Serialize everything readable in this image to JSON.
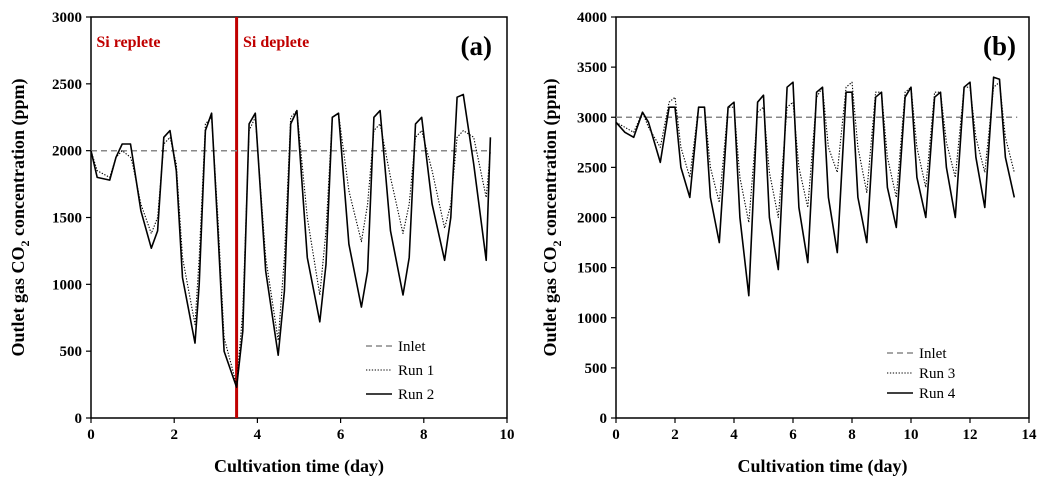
{
  "chart_data": [
    {
      "type": "line",
      "panel_label": "(a)",
      "xlabel": "Cultivation time (day)",
      "ylabel_main": "Outlet gas CO",
      "ylabel_sub": "2",
      "ylabel_tail": "  concentration (ppm)",
      "xlim": [
        0,
        10
      ],
      "ylim": [
        0,
        3000
      ],
      "xticks": [
        0,
        2,
        4,
        6,
        8,
        10
      ],
      "yticks": [
        0,
        500,
        1000,
        1500,
        2000,
        2500,
        3000
      ],
      "divider_x": 3.5,
      "regions": [
        {
          "label": "Si replete",
          "x": 0.9
        },
        {
          "label": "Si deplete",
          "x": 4.45
        }
      ],
      "colors": {
        "divider": "#c00000",
        "region_text": "#c00000",
        "inlet": "#888888",
        "run_a": "#000000",
        "run_b": "#000000"
      },
      "legend_position": "bottom-right",
      "series": [
        {
          "name": "Inlet",
          "style": "dashed",
          "x": [
            0,
            9.6
          ],
          "y": [
            2000,
            2000
          ]
        },
        {
          "name": "Run 1",
          "style": "dotted",
          "x": [
            0,
            0.15,
            0.45,
            0.6,
            0.75,
            0.95,
            1.0,
            1.2,
            1.45,
            1.6,
            1.75,
            1.9,
            2.05,
            2.2,
            2.5,
            2.6,
            2.75,
            2.9,
            3.05,
            3.2,
            3.5,
            3.65,
            3.8,
            3.95,
            4.2,
            4.5,
            4.65,
            4.8,
            4.95,
            5.2,
            5.5,
            5.65,
            5.8,
            5.95,
            6.2,
            6.5,
            6.65,
            6.8,
            6.95,
            7.2,
            7.5,
            7.65,
            7.8,
            7.95,
            8.2,
            8.5,
            8.65,
            8.8,
            8.95,
            9.2,
            9.5,
            9.6
          ],
          "y": [
            2000,
            1850,
            1800,
            1950,
            2000,
            1950,
            1900,
            1600,
            1380,
            1500,
            2050,
            2100,
            1900,
            1200,
            700,
            1200,
            2200,
            2250,
            1500,
            600,
            250,
            800,
            2150,
            2250,
            1200,
            580,
            1200,
            2250,
            2300,
            1500,
            920,
            1400,
            2250,
            2280,
            1700,
            1320,
            1600,
            2150,
            2200,
            1800,
            1380,
            1600,
            2100,
            2150,
            1850,
            1420,
            1600,
            2100,
            2150,
            2100,
            1650,
            2000
          ]
        },
        {
          "name": "Run 2",
          "style": "solid",
          "x": [
            0,
            0.15,
            0.45,
            0.6,
            0.75,
            0.95,
            1.0,
            1.2,
            1.45,
            1.6,
            1.75,
            1.9,
            2.05,
            2.2,
            2.5,
            2.6,
            2.75,
            2.9,
            3.05,
            3.2,
            3.5,
            3.65,
            3.8,
            3.95,
            4.2,
            4.5,
            4.65,
            4.8,
            4.95,
            5.2,
            5.5,
            5.65,
            5.8,
            5.95,
            6.2,
            6.5,
            6.65,
            6.8,
            6.95,
            7.2,
            7.5,
            7.65,
            7.8,
            7.95,
            8.2,
            8.5,
            8.65,
            8.8,
            8.95,
            9.2,
            9.5,
            9.6
          ],
          "y": [
            2000,
            1800,
            1780,
            1950,
            2050,
            2050,
            1950,
            1550,
            1270,
            1400,
            2100,
            2150,
            1850,
            1050,
            560,
            1000,
            2150,
            2280,
            1400,
            500,
            230,
            650,
            2200,
            2280,
            1100,
            470,
            950,
            2200,
            2300,
            1200,
            720,
            1150,
            2250,
            2280,
            1300,
            830,
            1100,
            2250,
            2300,
            1400,
            920,
            1200,
            2200,
            2250,
            1600,
            1180,
            1500,
            2400,
            2420,
            1900,
            1180,
            2100
          ]
        }
      ]
    },
    {
      "type": "line",
      "panel_label": "(b)",
      "xlabel": "Cultivation time (day)",
      "ylabel_main": "Outlet gas CO",
      "ylabel_sub": "2",
      "ylabel_tail": "  concentration (ppm)",
      "xlim": [
        0,
        14
      ],
      "ylim": [
        0,
        4000
      ],
      "xticks": [
        0,
        2,
        4,
        6,
        8,
        10,
        12,
        14
      ],
      "yticks": [
        0,
        500,
        1000,
        1500,
        2000,
        2500,
        3000,
        3500,
        4000
      ],
      "colors": {
        "inlet": "#888888",
        "run_a": "#000000",
        "run_b": "#000000"
      },
      "legend_position": "bottom-right",
      "series": [
        {
          "name": "Inlet",
          "style": "dashed",
          "x": [
            0,
            13.6
          ],
          "y": [
            3000,
            3000
          ]
        },
        {
          "name": "Run 3",
          "style": "dotted",
          "x": [
            0,
            0.3,
            0.6,
            0.9,
            1.1,
            1.5,
            1.8,
            2.0,
            2.2,
            2.5,
            2.8,
            3.0,
            3.2,
            3.5,
            3.8,
            4.0,
            4.2,
            4.5,
            4.8,
            5.0,
            5.2,
            5.5,
            5.8,
            6.0,
            6.2,
            6.5,
            6.8,
            7.0,
            7.2,
            7.5,
            7.8,
            8.0,
            8.2,
            8.5,
            8.8,
            9.0,
            9.2,
            9.5,
            9.8,
            10.0,
            10.2,
            10.5,
            10.8,
            11.0,
            11.2,
            11.5,
            11.8,
            12.0,
            12.2,
            12.5,
            12.8,
            13.0,
            13.2,
            13.5
          ],
          "y": [
            2950,
            2900,
            2850,
            3050,
            2900,
            2700,
            3150,
            3200,
            2700,
            2400,
            3100,
            3100,
            2500,
            2150,
            3100,
            3100,
            2400,
            1950,
            3050,
            3100,
            2450,
            2000,
            3100,
            3150,
            2500,
            2100,
            3200,
            3300,
            2700,
            2450,
            3300,
            3350,
            2700,
            2250,
            3250,
            3250,
            2600,
            2200,
            3250,
            3300,
            2700,
            2300,
            3250,
            3250,
            2750,
            2400,
            3300,
            3300,
            2800,
            2450,
            3300,
            3350,
            2800,
            2450
          ]
        },
        {
          "name": "Run 4",
          "style": "solid",
          "x": [
            0,
            0.3,
            0.6,
            0.9,
            1.1,
            1.5,
            1.8,
            2.0,
            2.2,
            2.5,
            2.8,
            3.0,
            3.2,
            3.5,
            3.8,
            4.0,
            4.2,
            4.5,
            4.8,
            5.0,
            5.2,
            5.5,
            5.8,
            6.0,
            6.2,
            6.5,
            6.8,
            7.0,
            7.2,
            7.5,
            7.8,
            8.0,
            8.2,
            8.5,
            8.8,
            9.0,
            9.2,
            9.5,
            9.8,
            10.0,
            10.2,
            10.5,
            10.8,
            11.0,
            11.2,
            11.5,
            11.8,
            12.0,
            12.2,
            12.5,
            12.8,
            13.0,
            13.2,
            13.5
          ],
          "y": [
            2950,
            2850,
            2800,
            3050,
            2950,
            2550,
            3100,
            3100,
            2500,
            2200,
            3100,
            3100,
            2200,
            1750,
            3100,
            3150,
            2000,
            1220,
            3150,
            3220,
            2000,
            1480,
            3300,
            3350,
            2100,
            1550,
            3250,
            3300,
            2200,
            1650,
            3250,
            3250,
            2200,
            1750,
            3200,
            3250,
            2300,
            1900,
            3200,
            3300,
            2400,
            2000,
            3200,
            3250,
            2500,
            2000,
            3300,
            3350,
            2600,
            2100,
            3400,
            3380,
            2600,
            2200
          ]
        }
      ]
    }
  ]
}
